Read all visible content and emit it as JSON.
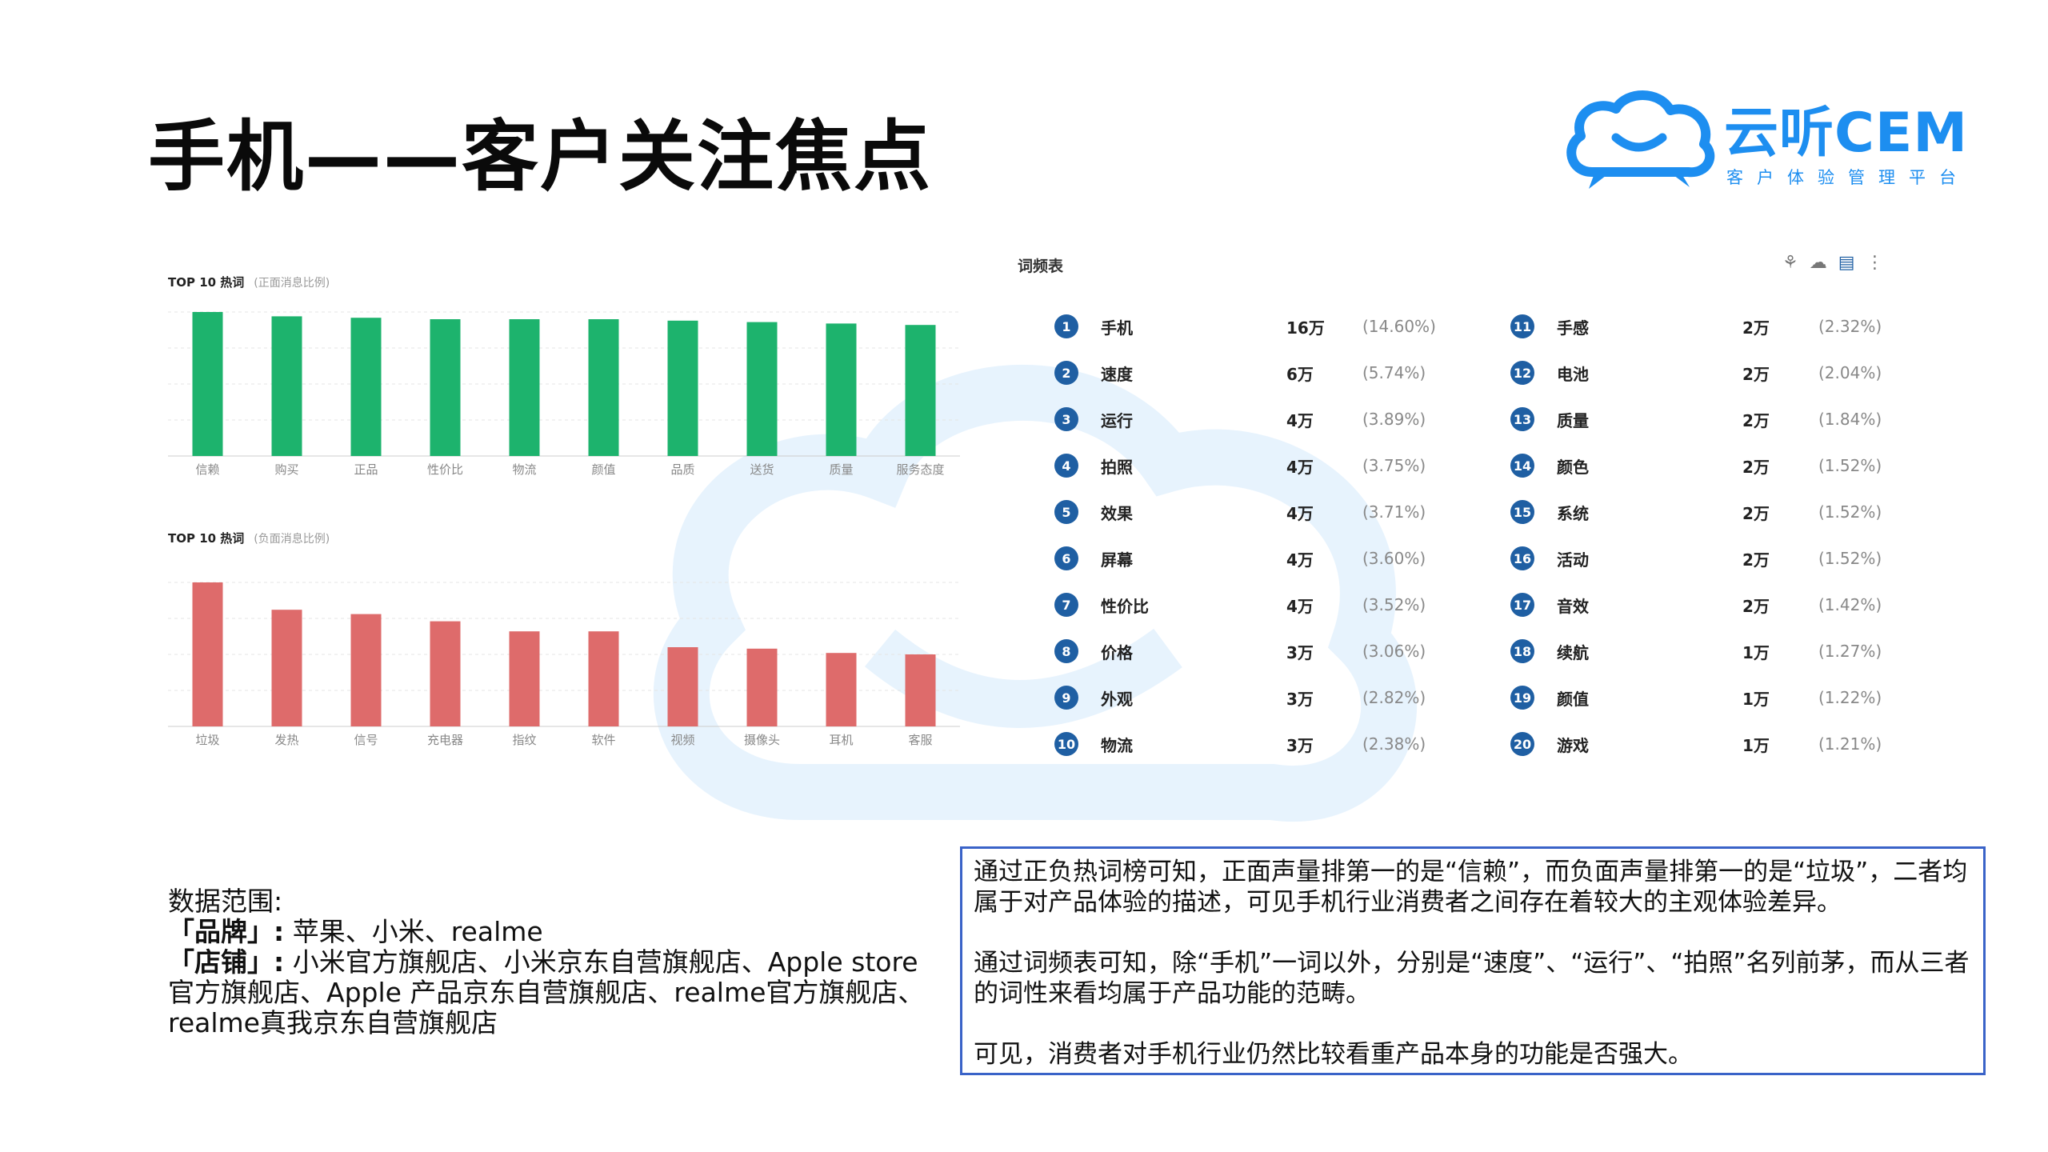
{
  "slide": {
    "title": "手机——客户关注焦点"
  },
  "logo": {
    "name": "云听CEM",
    "tagline": "客户体验管理平台",
    "brand_color": "#1d8ef0"
  },
  "positive_chart": {
    "title": "TOP 10 热词",
    "subtitle": "(正面消息比例)",
    "bar_color": "#1db36d"
  },
  "negative_chart": {
    "title": "TOP 10 热词",
    "subtitle": "(负面消息比例)",
    "bar_color": "#de6b6b"
  },
  "chart_data": [
    {
      "type": "bar",
      "title": "TOP 10 热词",
      "subtitle": "(正面消息比例)",
      "categories": [
        "信赖",
        "购买",
        "正品",
        "性价比",
        "物流",
        "颜值",
        "品质",
        "送货",
        "质量",
        "服务态度"
      ],
      "values": [
        100,
        97,
        96,
        95,
        95,
        95,
        94,
        93,
        92,
        91
      ],
      "ylim": [
        0,
        100
      ],
      "grid": true
    },
    {
      "type": "bar",
      "title": "TOP 10 热词",
      "subtitle": "(负面消息比例)",
      "categories": [
        "垃圾",
        "发热",
        "信号",
        "充电器",
        "指纹",
        "软件",
        "视频",
        "摄像头",
        "耳机",
        "客服"
      ],
      "values": [
        100,
        81,
        78,
        73,
        66,
        66,
        55,
        54,
        51,
        50
      ],
      "ylim": [
        0,
        100
      ],
      "grid": true
    }
  ],
  "freq_table": {
    "title": "词频表",
    "tools": [
      "cluster-icon",
      "cloud-icon",
      "table-icon",
      "more-icon"
    ],
    "badge_color": "#1f5fa3",
    "items": [
      {
        "rank": "1",
        "word": "手机",
        "count": "16万",
        "pct": "(14.60%)"
      },
      {
        "rank": "2",
        "word": "速度",
        "count": "6万",
        "pct": "(5.74%)"
      },
      {
        "rank": "3",
        "word": "运行",
        "count": "4万",
        "pct": "(3.89%)"
      },
      {
        "rank": "4",
        "word": "拍照",
        "count": "4万",
        "pct": "(3.75%)"
      },
      {
        "rank": "5",
        "word": "效果",
        "count": "4万",
        "pct": "(3.71%)"
      },
      {
        "rank": "6",
        "word": "屏幕",
        "count": "4万",
        "pct": "(3.60%)"
      },
      {
        "rank": "7",
        "word": "性价比",
        "count": "4万",
        "pct": "(3.52%)"
      },
      {
        "rank": "8",
        "word": "价格",
        "count": "3万",
        "pct": "(3.06%)"
      },
      {
        "rank": "9",
        "word": "外观",
        "count": "3万",
        "pct": "(2.82%)"
      },
      {
        "rank": "10",
        "word": "物流",
        "count": "3万",
        "pct": "(2.38%)"
      },
      {
        "rank": "11",
        "word": "手感",
        "count": "2万",
        "pct": "(2.32%)"
      },
      {
        "rank": "12",
        "word": "电池",
        "count": "2万",
        "pct": "(2.04%)"
      },
      {
        "rank": "13",
        "word": "质量",
        "count": "2万",
        "pct": "(1.84%)"
      },
      {
        "rank": "14",
        "word": "颜色",
        "count": "2万",
        "pct": "(1.52%)"
      },
      {
        "rank": "15",
        "word": "系统",
        "count": "2万",
        "pct": "(1.52%)"
      },
      {
        "rank": "16",
        "word": "活动",
        "count": "2万",
        "pct": "(1.52%)"
      },
      {
        "rank": "17",
        "word": "音效",
        "count": "2万",
        "pct": "(1.42%)"
      },
      {
        "rank": "18",
        "word": "续航",
        "count": "1万",
        "pct": "(1.27%)"
      },
      {
        "rank": "19",
        "word": "颜值",
        "count": "1万",
        "pct": "(1.22%)"
      },
      {
        "rank": "20",
        "word": "游戏",
        "count": "1万",
        "pct": "(1.21%)"
      }
    ]
  },
  "scope": {
    "heading": "数据范围:",
    "brand_label": "「品牌」:",
    "brand_value": "苹果、小米、realme",
    "store_label": "「店铺」:",
    "store_value": "小米官方旗舰店、小米京东自营旗舰店、Apple store官方旗舰店、Apple 产品京东自营旗舰店、realme官方旗舰店、realme真我京东自营旗舰店"
  },
  "insight": {
    "p1": "通过正负热词榜可知，正面声量排第一的是“信赖”，而负面声量排第一的是“垃圾”，二者均属于对产品体验的描述，可见手机行业消费者之间存在着较大的主观体验差异。",
    "p2": "通过词频表可知，除“手机”一词以外，分别是“速度”、“运行”、“拍照”名列前茅，而从三者的词性来看均属于产品功能的范畴。",
    "p3": "可见，消费者对手机行业仍然比较看重产品本身的功能是否强大。",
    "border_color": "#3a63c8"
  }
}
